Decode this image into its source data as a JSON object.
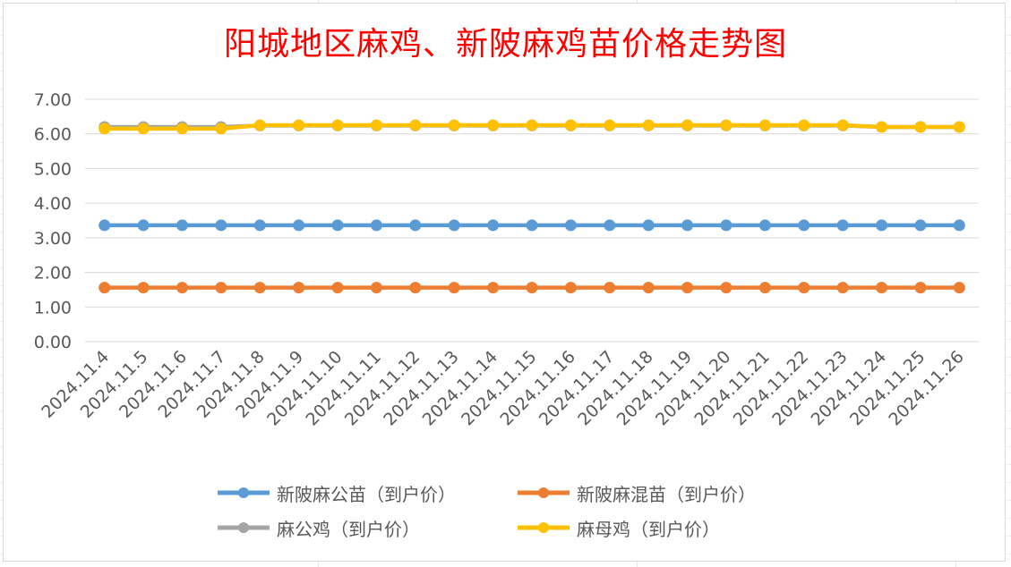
{
  "chart_data": {
    "type": "line",
    "title": "阳城地区麻鸡、新陂麻鸡苗价格走势图",
    "xlabel": "",
    "ylabel": "",
    "categories": [
      "2024.11.4",
      "2024.11.5",
      "2024.11.6",
      "2024.11.7",
      "2024.11.8",
      "2024.11.9",
      "2024.11.10",
      "2024.11.11",
      "2024.11.12",
      "2024.11.13",
      "2024.11.14",
      "2024.11.15",
      "2024.11.16",
      "2024.11.17",
      "2024.11.18",
      "2024.11.19",
      "2024.11.20",
      "2024.11.21",
      "2024.11.22",
      "2024.11.23",
      "2024.11.24",
      "2024.11.25",
      "2024.11.26"
    ],
    "y_tick_labels": [
      "0.00",
      "1.00",
      "2.00",
      "3.00",
      "4.00",
      "5.00",
      "6.00",
      "7.00"
    ],
    "ylim": [
      0,
      7
    ],
    "grid": true,
    "legend_position": "bottom",
    "series": [
      {
        "name": "新陂麻公苗（到户价）",
        "color": "#5B9BD5",
        "values": [
          3.36,
          3.36,
          3.36,
          3.36,
          3.36,
          3.36,
          3.36,
          3.36,
          3.36,
          3.36,
          3.36,
          3.36,
          3.36,
          3.36,
          3.36,
          3.36,
          3.36,
          3.36,
          3.36,
          3.36,
          3.36,
          3.36,
          3.36
        ]
      },
      {
        "name": "新陂麻混苗（到户价）",
        "color": "#ED7D31",
        "values": [
          1.56,
          1.56,
          1.56,
          1.56,
          1.56,
          1.56,
          1.56,
          1.56,
          1.56,
          1.56,
          1.56,
          1.56,
          1.56,
          1.56,
          1.56,
          1.56,
          1.56,
          1.56,
          1.56,
          1.56,
          1.56,
          1.56,
          1.56
        ]
      },
      {
        "name": "麻公鸡（到户价）",
        "color": "#A5A5A5",
        "values": [
          6.2,
          6.2,
          6.2,
          6.2,
          6.24,
          6.24,
          6.24,
          6.24,
          6.24,
          6.24,
          6.24,
          6.24,
          6.24,
          6.24,
          6.24,
          6.24,
          6.24,
          6.24,
          6.24,
          6.24,
          6.2,
          6.2,
          6.2
        ]
      },
      {
        "name": "麻母鸡（到户价）",
        "color": "#FFC000",
        "values": [
          6.15,
          6.15,
          6.15,
          6.15,
          6.25,
          6.25,
          6.25,
          6.25,
          6.25,
          6.25,
          6.25,
          6.25,
          6.25,
          6.25,
          6.25,
          6.25,
          6.25,
          6.25,
          6.25,
          6.25,
          6.2,
          6.2,
          6.2
        ]
      }
    ]
  }
}
